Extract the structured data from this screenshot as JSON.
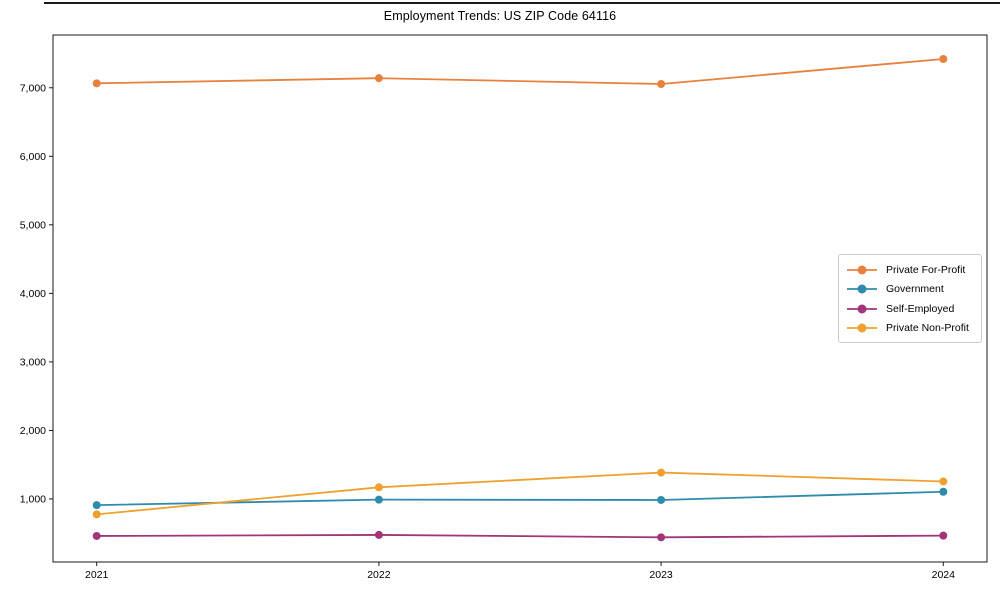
{
  "chart_data": {
    "type": "line",
    "title": "Employment Trends: US ZIP Code 64116",
    "categories": [
      "2021",
      "2022",
      "2023",
      "2024"
    ],
    "series": [
      {
        "name": "Private For-Profit",
        "color": "#e8813e",
        "values": [
          7065,
          7140,
          7055,
          7420
        ]
      },
      {
        "name": "Government",
        "color": "#2e8bab",
        "values": [
          910,
          990,
          985,
          1105
        ]
      },
      {
        "name": "Self-Employed",
        "color": "#a23478",
        "values": [
          460,
          475,
          440,
          465
        ]
      },
      {
        "name": "Private Non-Profit",
        "color": "#f0a02e",
        "values": [
          775,
          1170,
          1385,
          1255
        ]
      }
    ],
    "xlabel": "",
    "ylabel": "",
    "ylim": [
      80,
      7770
    ],
    "yticks": [
      1000,
      2000,
      3000,
      4000,
      5000,
      6000,
      7000
    ],
    "ytick_labels": [
      "1,000",
      "2,000",
      "3,000",
      "4,000",
      "5,000",
      "6,000",
      "7,000"
    ],
    "grid": false,
    "legend_position": "right-center",
    "axis_color": "#1a1a1a"
  }
}
